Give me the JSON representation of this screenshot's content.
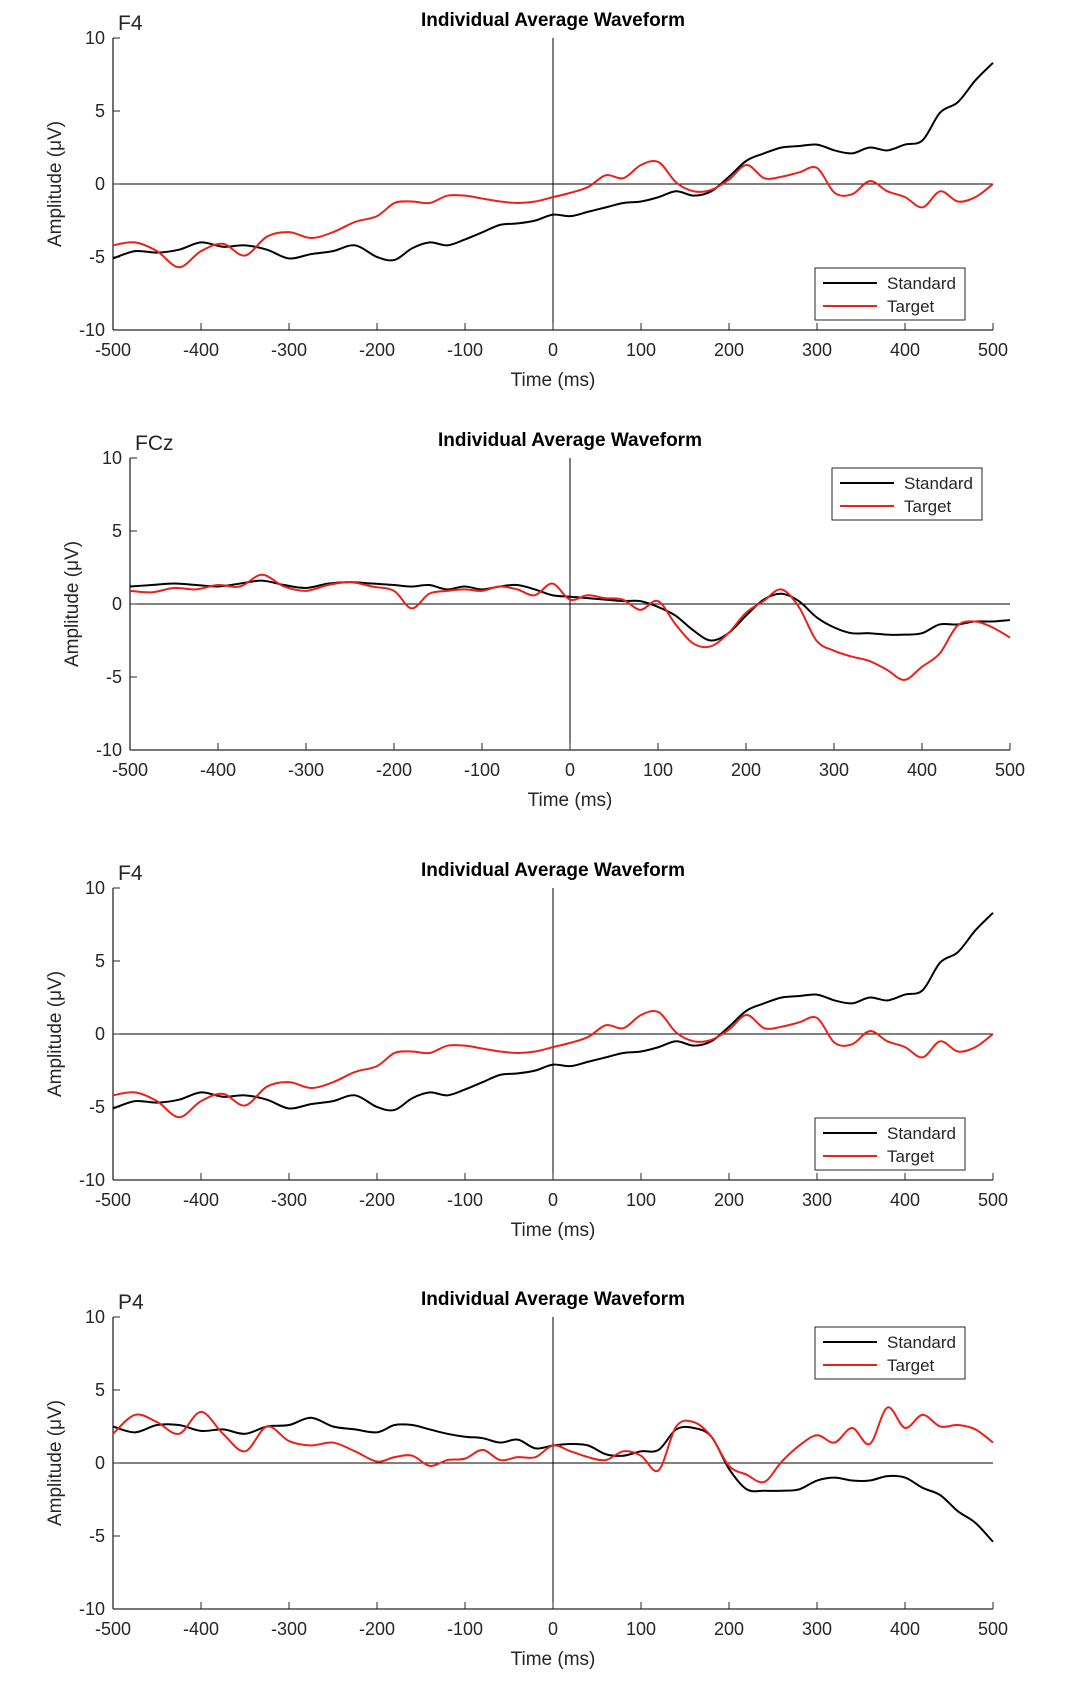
{
  "figure": {
    "panels": [
      {
        "id": "p1",
        "channel": "F4",
        "title": "Individual Average Waveform"
      },
      {
        "id": "p2",
        "channel": "FCz",
        "title": "Individual Average Waveform"
      },
      {
        "id": "p3",
        "channel": "F4",
        "title": "Individual Average Waveform"
      },
      {
        "id": "p4",
        "channel": "P4",
        "title": "Individual Average Waveform"
      }
    ]
  },
  "chart_data": [
    {
      "type": "line",
      "title": "Individual Average Waveform",
      "annotation": "F4",
      "xlabel": "Time (ms)",
      "ylabel": "Amplitude (μV)",
      "xlim": [
        -500,
        500
      ],
      "ylim": [
        -10,
        10
      ],
      "xticks": [
        -500,
        -400,
        -300,
        -200,
        -100,
        0,
        100,
        200,
        300,
        400,
        500
      ],
      "yticks": [
        -10,
        -5,
        0,
        5,
        10
      ],
      "legend_position": "bottom-right",
      "series": [
        {
          "name": "Standard",
          "color": "#000000",
          "x": [
            -500,
            -475,
            -450,
            -425,
            -400,
            -375,
            -350,
            -325,
            -300,
            -275,
            -250,
            -225,
            -200,
            -180,
            -160,
            -140,
            -120,
            -100,
            -80,
            -60,
            -40,
            -20,
            0,
            20,
            40,
            60,
            80,
            100,
            120,
            140,
            160,
            180,
            200,
            220,
            240,
            260,
            280,
            300,
            320,
            340,
            360,
            380,
            400,
            420,
            440,
            460,
            480,
            500
          ],
          "y": [
            -5.1,
            -4.6,
            -4.7,
            -4.5,
            -4.0,
            -4.3,
            -4.2,
            -4.5,
            -5.1,
            -4.8,
            -4.6,
            -4.2,
            -5.0,
            -5.2,
            -4.4,
            -4.0,
            -4.2,
            -3.8,
            -3.3,
            -2.8,
            -2.7,
            -2.5,
            -2.1,
            -2.2,
            -1.9,
            -1.6,
            -1.3,
            -1.2,
            -0.9,
            -0.5,
            -0.8,
            -0.5,
            0.5,
            1.6,
            2.1,
            2.5,
            2.6,
            2.7,
            2.3,
            2.1,
            2.5,
            2.3,
            2.7,
            3.0,
            4.9,
            5.6,
            7.1,
            8.3
          ]
        },
        {
          "name": "Target",
          "color": "#e8211a",
          "x": [
            -500,
            -475,
            -450,
            -425,
            -400,
            -375,
            -350,
            -325,
            -300,
            -275,
            -250,
            -225,
            -200,
            -180,
            -160,
            -140,
            -120,
            -100,
            -80,
            -60,
            -40,
            -20,
            0,
            20,
            40,
            60,
            80,
            100,
            120,
            140,
            160,
            180,
            200,
            220,
            240,
            260,
            280,
            300,
            320,
            340,
            360,
            380,
            400,
            420,
            440,
            460,
            480,
            500
          ],
          "y": [
            -4.2,
            -4.0,
            -4.6,
            -5.7,
            -4.6,
            -4.1,
            -4.9,
            -3.6,
            -3.3,
            -3.7,
            -3.3,
            -2.6,
            -2.2,
            -1.3,
            -1.2,
            -1.3,
            -0.8,
            -0.8,
            -1.0,
            -1.2,
            -1.3,
            -1.2,
            -0.9,
            -0.6,
            -0.2,
            0.6,
            0.4,
            1.3,
            1.5,
            0.1,
            -0.5,
            -0.4,
            0.3,
            1.3,
            0.4,
            0.5,
            0.8,
            1.1,
            -0.6,
            -0.7,
            0.2,
            -0.5,
            -0.9,
            -1.6,
            -0.5,
            -1.2,
            -0.9,
            0.0
          ]
        }
      ]
    },
    {
      "type": "line",
      "title": "Individual Average Waveform",
      "annotation": "FCz",
      "xlabel": "Time (ms)",
      "ylabel": "Amplitude (μV)",
      "xlim": [
        -500,
        500
      ],
      "ylim": [
        -10,
        10
      ],
      "xticks": [
        -500,
        -400,
        -300,
        -200,
        -100,
        0,
        100,
        200,
        300,
        400,
        500
      ],
      "yticks": [
        -10,
        -5,
        0,
        5,
        10
      ],
      "legend_position": "top-right",
      "series": [
        {
          "name": "Standard",
          "color": "#000000",
          "x": [
            -500,
            -475,
            -450,
            -425,
            -400,
            -375,
            -350,
            -325,
            -300,
            -275,
            -250,
            -225,
            -200,
            -180,
            -160,
            -140,
            -120,
            -100,
            -80,
            -60,
            -40,
            -20,
            0,
            20,
            40,
            60,
            80,
            100,
            120,
            140,
            160,
            180,
            200,
            220,
            240,
            260,
            280,
            300,
            320,
            340,
            360,
            380,
            400,
            420,
            440,
            460,
            480,
            500
          ],
          "y": [
            1.2,
            1.3,
            1.4,
            1.3,
            1.2,
            1.4,
            1.6,
            1.3,
            1.1,
            1.4,
            1.5,
            1.4,
            1.3,
            1.2,
            1.3,
            1.0,
            1.2,
            1.0,
            1.2,
            1.3,
            1.0,
            0.6,
            0.5,
            0.4,
            0.3,
            0.2,
            0.2,
            -0.2,
            -0.8,
            -1.8,
            -2.5,
            -2.0,
            -0.8,
            0.3,
            0.7,
            0.2,
            -0.9,
            -1.6,
            -2.0,
            -2.0,
            -2.1,
            -2.1,
            -2.0,
            -1.4,
            -1.4,
            -1.2,
            -1.2,
            -1.1
          ]
        },
        {
          "name": "Target",
          "color": "#e8211a",
          "x": [
            -500,
            -475,
            -450,
            -425,
            -400,
            -375,
            -350,
            -325,
            -300,
            -275,
            -250,
            -225,
            -200,
            -180,
            -160,
            -140,
            -120,
            -100,
            -80,
            -60,
            -40,
            -20,
            0,
            20,
            40,
            60,
            80,
            100,
            120,
            140,
            160,
            180,
            200,
            220,
            240,
            260,
            280,
            300,
            320,
            340,
            360,
            380,
            400,
            420,
            440,
            460,
            480,
            500
          ],
          "y": [
            0.9,
            0.8,
            1.1,
            1.0,
            1.3,
            1.2,
            2.0,
            1.2,
            0.9,
            1.3,
            1.5,
            1.2,
            0.9,
            -0.3,
            0.7,
            0.9,
            1.0,
            0.9,
            1.2,
            1.0,
            0.6,
            1.4,
            0.3,
            0.6,
            0.4,
            0.3,
            -0.4,
            0.2,
            -1.4,
            -2.7,
            -2.9,
            -2.0,
            -0.6,
            0.2,
            1.0,
            -0.2,
            -2.5,
            -3.2,
            -3.6,
            -3.9,
            -4.5,
            -5.2,
            -4.3,
            -3.4,
            -1.5,
            -1.2,
            -1.6,
            -2.3
          ]
        }
      ]
    },
    {
      "type": "line",
      "title": "Individual Average Waveform",
      "annotation": "F4",
      "xlabel": "Time (ms)",
      "ylabel": "Amplitude (μV)",
      "xlim": [
        -500,
        500
      ],
      "ylim": [
        -10,
        10
      ],
      "xticks": [
        -500,
        -400,
        -300,
        -200,
        -100,
        0,
        100,
        200,
        300,
        400,
        500
      ],
      "yticks": [
        -10,
        -5,
        0,
        5,
        10
      ],
      "legend_position": "bottom-right",
      "series": [
        {
          "name": "Standard",
          "color": "#000000",
          "x": [
            -500,
            -475,
            -450,
            -425,
            -400,
            -375,
            -350,
            -325,
            -300,
            -275,
            -250,
            -225,
            -200,
            -180,
            -160,
            -140,
            -120,
            -100,
            -80,
            -60,
            -40,
            -20,
            0,
            20,
            40,
            60,
            80,
            100,
            120,
            140,
            160,
            180,
            200,
            220,
            240,
            260,
            280,
            300,
            320,
            340,
            360,
            380,
            400,
            420,
            440,
            460,
            480,
            500
          ],
          "y": [
            -5.1,
            -4.6,
            -4.7,
            -4.5,
            -4.0,
            -4.3,
            -4.2,
            -4.5,
            -5.1,
            -4.8,
            -4.6,
            -4.2,
            -5.0,
            -5.2,
            -4.4,
            -4.0,
            -4.2,
            -3.8,
            -3.3,
            -2.8,
            -2.7,
            -2.5,
            -2.1,
            -2.2,
            -1.9,
            -1.6,
            -1.3,
            -1.2,
            -0.9,
            -0.5,
            -0.8,
            -0.5,
            0.5,
            1.6,
            2.1,
            2.5,
            2.6,
            2.7,
            2.3,
            2.1,
            2.5,
            2.3,
            2.7,
            3.0,
            4.9,
            5.6,
            7.1,
            8.3
          ]
        },
        {
          "name": "Target",
          "color": "#e8211a",
          "x": [
            -500,
            -475,
            -450,
            -425,
            -400,
            -375,
            -350,
            -325,
            -300,
            -275,
            -250,
            -225,
            -200,
            -180,
            -160,
            -140,
            -120,
            -100,
            -80,
            -60,
            -40,
            -20,
            0,
            20,
            40,
            60,
            80,
            100,
            120,
            140,
            160,
            180,
            200,
            220,
            240,
            260,
            280,
            300,
            320,
            340,
            360,
            380,
            400,
            420,
            440,
            460,
            480,
            500
          ],
          "y": [
            -4.2,
            -4.0,
            -4.6,
            -5.7,
            -4.6,
            -4.1,
            -4.9,
            -3.6,
            -3.3,
            -3.7,
            -3.3,
            -2.6,
            -2.2,
            -1.3,
            -1.2,
            -1.3,
            -0.8,
            -0.8,
            -1.0,
            -1.2,
            -1.3,
            -1.2,
            -0.9,
            -0.6,
            -0.2,
            0.6,
            0.4,
            1.3,
            1.5,
            0.1,
            -0.5,
            -0.4,
            0.3,
            1.3,
            0.4,
            0.5,
            0.8,
            1.1,
            -0.6,
            -0.7,
            0.2,
            -0.5,
            -0.9,
            -1.6,
            -0.5,
            -1.2,
            -0.9,
            0.0
          ]
        }
      ]
    },
    {
      "type": "line",
      "title": "Individual Average Waveform",
      "annotation": "P4",
      "xlabel": "Time (ms)",
      "ylabel": "Amplitude (μV)",
      "xlim": [
        -500,
        500
      ],
      "ylim": [
        -10,
        10
      ],
      "xticks": [
        -500,
        -400,
        -300,
        -200,
        -100,
        0,
        100,
        200,
        300,
        400,
        500
      ],
      "yticks": [
        -10,
        -5,
        0,
        5,
        10
      ],
      "legend_position": "top-right",
      "series": [
        {
          "name": "Standard",
          "color": "#000000",
          "x": [
            -500,
            -475,
            -450,
            -425,
            -400,
            -375,
            -350,
            -325,
            -300,
            -275,
            -250,
            -225,
            -200,
            -180,
            -160,
            -140,
            -120,
            -100,
            -80,
            -60,
            -40,
            -20,
            0,
            20,
            40,
            60,
            80,
            100,
            120,
            140,
            160,
            180,
            200,
            220,
            240,
            260,
            280,
            300,
            320,
            340,
            360,
            380,
            400,
            420,
            440,
            460,
            480,
            500
          ],
          "y": [
            2.5,
            2.1,
            2.6,
            2.6,
            2.2,
            2.3,
            2.0,
            2.5,
            2.6,
            3.1,
            2.5,
            2.3,
            2.1,
            2.6,
            2.6,
            2.3,
            2.0,
            1.8,
            1.7,
            1.4,
            1.6,
            1.0,
            1.2,
            1.3,
            1.2,
            0.6,
            0.5,
            0.8,
            0.9,
            2.3,
            2.4,
            1.8,
            -0.4,
            -1.8,
            -1.9,
            -1.9,
            -1.8,
            -1.2,
            -1.0,
            -1.2,
            -1.2,
            -0.9,
            -1.0,
            -1.7,
            -2.2,
            -3.3,
            -4.1,
            -5.4
          ]
        },
        {
          "name": "Target",
          "color": "#e8211a",
          "x": [
            -500,
            -475,
            -450,
            -425,
            -400,
            -375,
            -350,
            -325,
            -300,
            -275,
            -250,
            -225,
            -200,
            -180,
            -160,
            -140,
            -120,
            -100,
            -80,
            -60,
            -40,
            -20,
            0,
            20,
            40,
            60,
            80,
            100,
            120,
            140,
            160,
            180,
            200,
            220,
            240,
            260,
            280,
            300,
            320,
            340,
            360,
            380,
            400,
            420,
            440,
            460,
            480,
            500
          ],
          "y": [
            2.0,
            3.3,
            2.8,
            2.0,
            3.5,
            2.0,
            0.8,
            2.5,
            1.5,
            1.2,
            1.4,
            0.8,
            0.1,
            0.4,
            0.5,
            -0.2,
            0.2,
            0.3,
            0.9,
            0.2,
            0.4,
            0.4,
            1.2,
            0.8,
            0.4,
            0.2,
            0.8,
            0.5,
            -0.5,
            2.5,
            2.8,
            1.8,
            -0.2,
            -0.8,
            -1.3,
            0.1,
            1.2,
            1.9,
            1.4,
            2.4,
            1.3,
            3.8,
            2.4,
            3.3,
            2.5,
            2.6,
            2.3,
            1.4
          ]
        }
      ]
    }
  ]
}
